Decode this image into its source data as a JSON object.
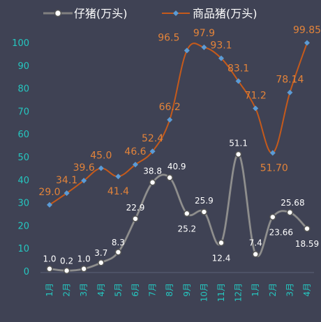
{
  "chart_data": {
    "type": "line",
    "title": "",
    "xlabel": "",
    "ylabel": "",
    "categories": [
      "1月",
      "2月",
      "3月",
      "4月",
      "5月",
      "6月",
      "7月",
      "8月",
      "9月",
      "10月",
      "11月",
      "12月",
      "1月",
      "2月",
      "3月",
      "4月"
    ],
    "ylim": [
      0,
      100
    ],
    "yticks": [
      0,
      10,
      20,
      30,
      40,
      50,
      60,
      70,
      80,
      90,
      100
    ],
    "grid": false,
    "legend": "top",
    "series": [
      {
        "name": "仔猪(万头)",
        "color": "#808080",
        "marker": "circle",
        "values": [
          1.0,
          0.2,
          1.0,
          3.7,
          8.3,
          22.9,
          38.8,
          40.9,
          25.2,
          25.9,
          12.4,
          51.1,
          7.4,
          23.66,
          25.68,
          18.59
        ],
        "labels": [
          "1.0",
          "0.2",
          "1.0",
          "3.7",
          "8.3",
          "22.9",
          "38.8",
          "40.9",
          "25.2",
          "25.9",
          "12.4",
          "51.1",
          "7.4",
          "23.66",
          "25.68",
          "18.59"
        ]
      },
      {
        "name": "商品猪(万头)",
        "color": "#c55a1b",
        "marker": "diamond",
        "values": [
          29.0,
          34.1,
          39.6,
          45.0,
          41.4,
          46.6,
          52.4,
          66.2,
          96.5,
          97.9,
          93.1,
          83.1,
          71.2,
          51.7,
          78.14,
          99.85
        ],
        "labels": [
          "29.0",
          "34.1",
          "39.6",
          "45.0",
          "41.4",
          "46.6",
          "52.4",
          "66.2",
          "96.5",
          "97.9",
          "93.1",
          "83.1",
          "71.2",
          "51.70",
          "78.14",
          "99.85"
        ]
      }
    ]
  }
}
